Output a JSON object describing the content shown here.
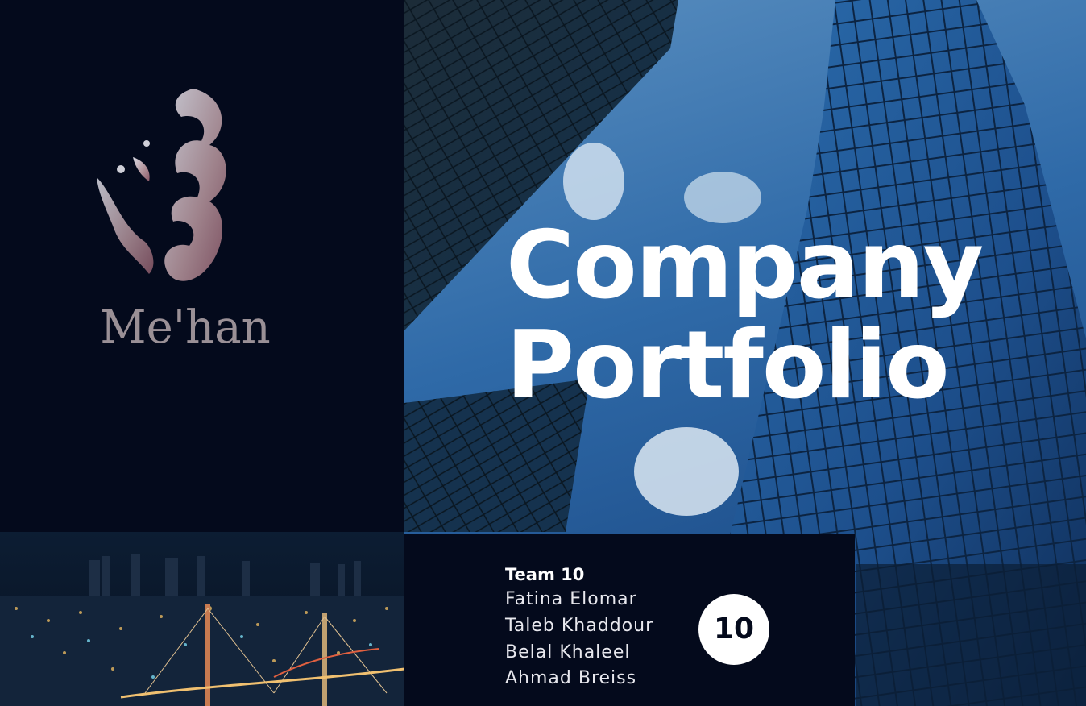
{
  "brand": {
    "name": "Me'han"
  },
  "cover": {
    "title_line1": "Company",
    "title_line2": "Portfolio"
  },
  "team": {
    "heading": "Team 10",
    "members": [
      "Fatina Elomar",
      "Taleb Khaddour",
      "Belal Khaleel",
      "Ahmad Breiss"
    ],
    "badge_number": "10"
  },
  "colors": {
    "navy": "#040a1c",
    "white": "#ffffff",
    "brand_text": "#9a9096"
  },
  "icons": {
    "logo": "arabic-calligraphy-logo"
  }
}
